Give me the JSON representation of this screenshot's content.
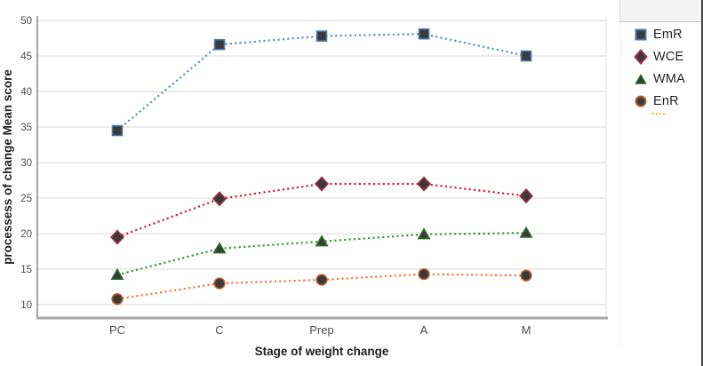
{
  "chart_data": {
    "type": "line",
    "title": "",
    "xlabel": "Stage of weight change",
    "ylabel": "processess of change Mean score",
    "categories": [
      "PC",
      "C",
      "Prep",
      "A",
      "M"
    ],
    "series": [
      {
        "name": "EmR",
        "values": [
          34.5,
          46.6,
          47.8,
          48.1,
          45.0
        ],
        "line_color": "#5b8fd4",
        "marker": "square",
        "marker_border": "#4d79b0"
      },
      {
        "name": "WCE",
        "values": [
          19.5,
          24.9,
          27.0,
          27.0,
          25.3
        ],
        "line_color": "#cc1f3f",
        "marker": "diamond",
        "marker_border": "#a8304c"
      },
      {
        "name": "WMA",
        "values": [
          14.2,
          17.9,
          18.9,
          19.9,
          20.1
        ],
        "line_color": "#2f9e33",
        "marker": "triangle",
        "marker_border": "#2c6e2c"
      },
      {
        "name": "EnR",
        "values": [
          10.8,
          13.0,
          13.5,
          14.3,
          14.1
        ],
        "line_color": "#f2793b",
        "marker": "circle",
        "marker_border": "#b65c2e"
      }
    ],
    "marker_fill": "#3a3a3a",
    "line_style": "dotted",
    "yticks": [
      10,
      15,
      20,
      25,
      30,
      35,
      40,
      45,
      50
    ],
    "ylim": [
      8.1,
      50.6
    ],
    "grid": true,
    "gridline_color": "#d9d9d9",
    "axis_line_color": "#a6a6a6",
    "tick_label_color": "#4d4d4d",
    "axis_title_color": "#1f1f1f",
    "legend_position": "right",
    "legend_artifact_color": "#e8c33c"
  }
}
